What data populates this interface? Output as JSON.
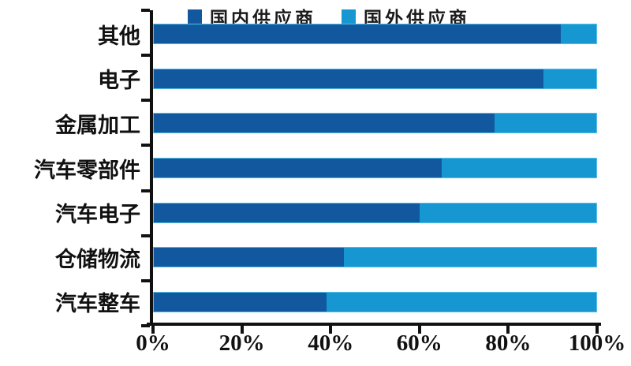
{
  "legend": {
    "items": [
      {
        "label": "国内供应商",
        "color": "#11589E"
      },
      {
        "label": "国外供应商",
        "color": "#1697D2"
      }
    ]
  },
  "axis": {
    "color": "#111111",
    "x_tick_labels": [
      "0%",
      "20%",
      "40%",
      "60%",
      "80%",
      "100%"
    ]
  },
  "chart_data": {
    "type": "bar",
    "orientation": "horizontal",
    "stacked": true,
    "unit": "%",
    "title": "",
    "xlabel": "",
    "ylabel": "",
    "xlim": [
      0,
      100
    ],
    "grid": false,
    "legend_position": "top",
    "categories": [
      "其他",
      "电子",
      "金属加工",
      "汽车零部件",
      "汽车电子",
      "仓储物流",
      "汽车整车"
    ],
    "series": [
      {
        "name": "国内供应商",
        "color": "#11589E",
        "values": [
          92,
          88,
          77,
          65,
          60,
          43,
          39
        ]
      },
      {
        "name": "国外供应商",
        "color": "#1697D2",
        "values": [
          8,
          12,
          23,
          35,
          40,
          57,
          61
        ]
      }
    ],
    "x_ticks": [
      "0%",
      "20%",
      "40%",
      "60%",
      "80%",
      "100%"
    ],
    "bar_border_color": "#55BFE5"
  }
}
